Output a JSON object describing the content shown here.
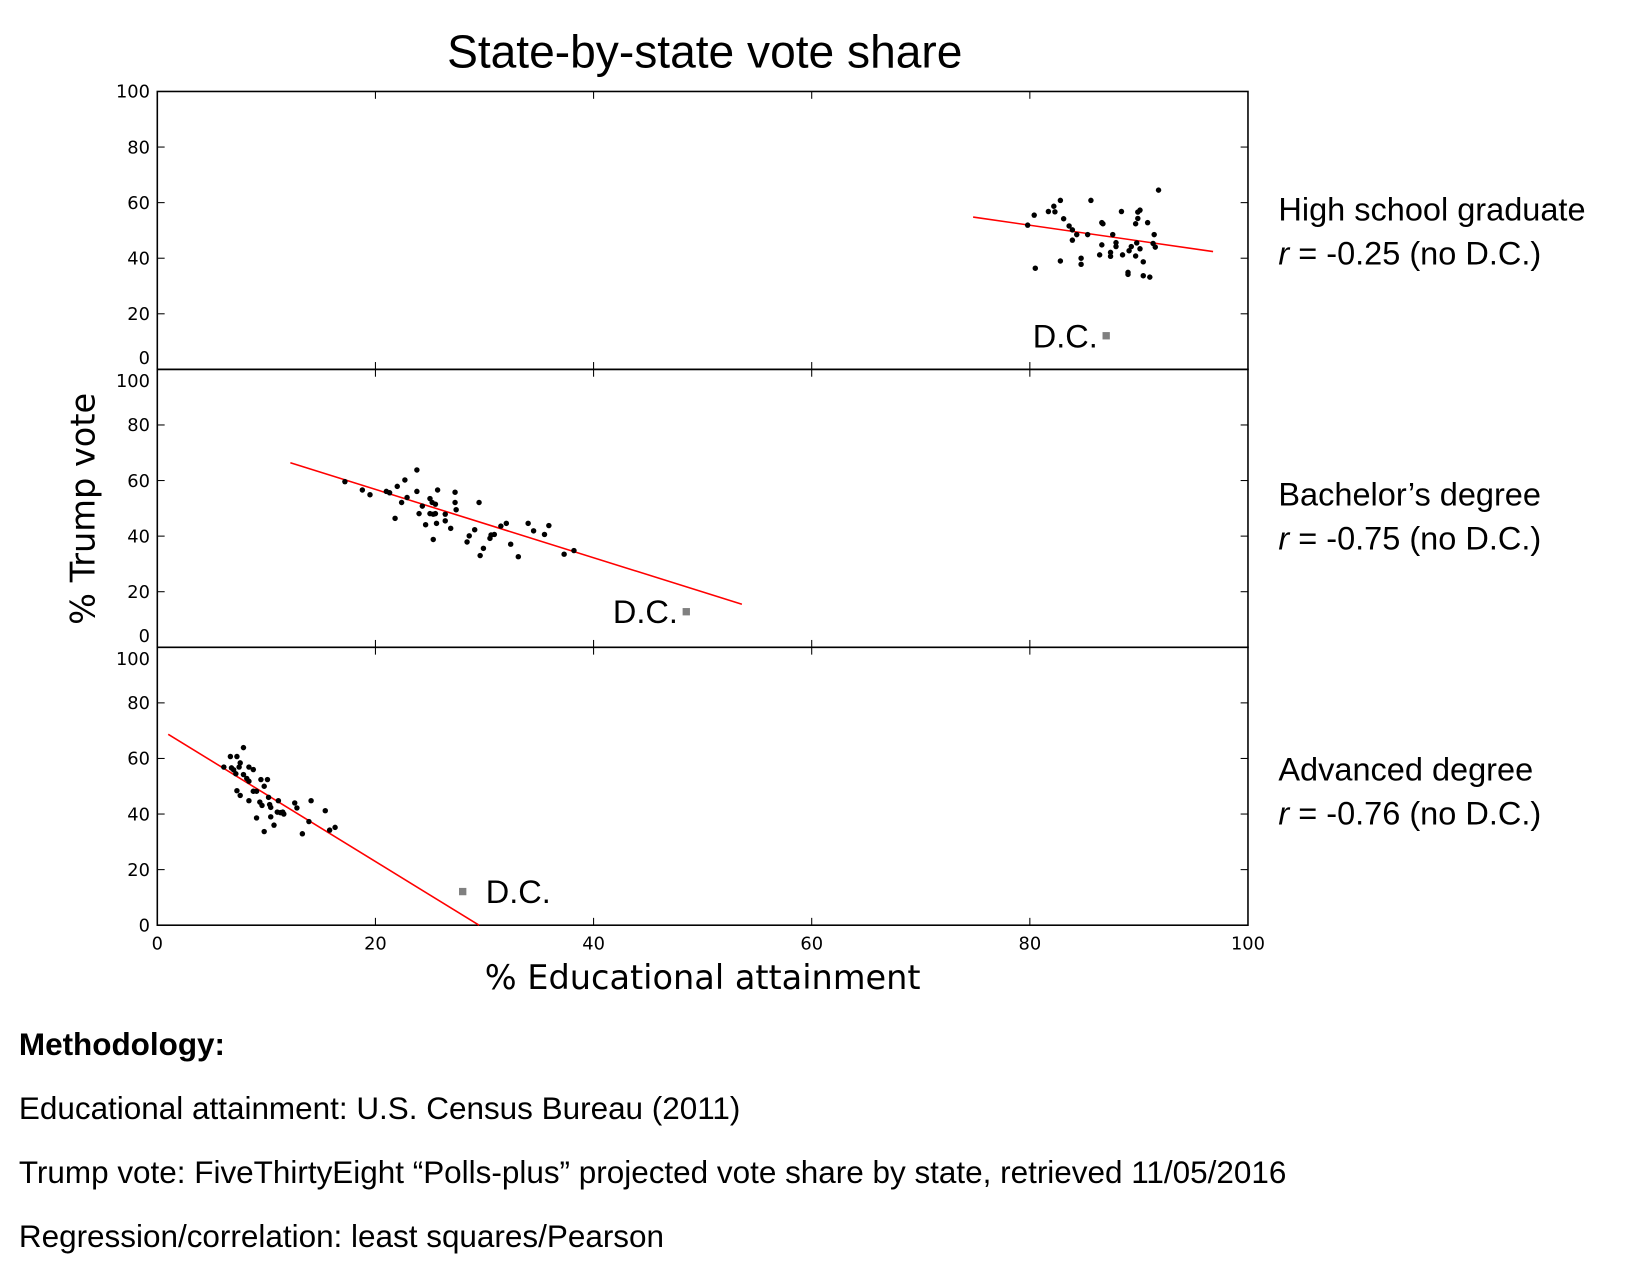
{
  "chart_data": {
    "type": "scatter",
    "title": "State-by-state vote share",
    "xlabel": "% Educational attainment",
    "ylabel": "% Trump vote",
    "xlim": [
      0,
      100
    ],
    "ylim": [
      0,
      100
    ],
    "xticks": [
      "0",
      "20",
      "40",
      "60",
      "80",
      "100"
    ],
    "yticks": [
      "0",
      "20",
      "40",
      "60",
      "80",
      "100"
    ],
    "grid": false,
    "colors": {
      "points": "#000000",
      "fit": "#ff0000",
      "dc": "#808080"
    },
    "panels": [
      {
        "name": "High school graduate",
        "r_label": "r",
        "r_text": " = -0.25 (no D.C.)",
        "dc_label": "D.C.",
        "dc_point": [
          87.0,
          12.1
        ],
        "fit_line": [
          [
            74.8,
            54.8
          ],
          [
            96.8,
            42.4
          ]
        ],
        "points": [
          [
            79.8,
            51.9
          ],
          [
            80.4,
            55.5
          ],
          [
            80.5,
            36.4
          ],
          [
            81.7,
            56.8
          ],
          [
            82.2,
            58.7
          ],
          [
            82.3,
            56.7
          ],
          [
            82.8,
            60.8
          ],
          [
            82.8,
            39.0
          ],
          [
            83.1,
            54.2
          ],
          [
            83.6,
            51.6
          ],
          [
            83.9,
            50.2
          ],
          [
            84.3,
            48.5
          ],
          [
            83.9,
            46.5
          ],
          [
            84.7,
            40.0
          ],
          [
            84.7,
            37.8
          ],
          [
            85.3,
            48.5
          ],
          [
            85.6,
            60.8
          ],
          [
            86.4,
            41.2
          ],
          [
            86.6,
            44.8
          ],
          [
            86.6,
            52.8
          ],
          [
            86.7,
            52.4
          ],
          [
            87.4,
            42.1
          ],
          [
            87.4,
            40.7
          ],
          [
            87.6,
            48.5
          ],
          [
            87.9,
            45.6
          ],
          [
            87.9,
            44.2
          ],
          [
            88.4,
            56.8
          ],
          [
            88.5,
            41.2
          ],
          [
            89.0,
            34.9
          ],
          [
            89.0,
            34.2
          ],
          [
            89.1,
            42.7
          ],
          [
            89.3,
            44.2
          ],
          [
            89.7,
            40.8
          ],
          [
            89.7,
            52.4
          ],
          [
            89.8,
            45.5
          ],
          [
            89.9,
            54.3
          ],
          [
            89.9,
            56.6
          ],
          [
            90.1,
            57.3
          ],
          [
            90.1,
            43.4
          ],
          [
            90.4,
            33.7
          ],
          [
            90.4,
            38.7
          ],
          [
            90.8,
            52.8
          ],
          [
            91.0,
            33.2
          ],
          [
            91.4,
            48.5
          ],
          [
            91.3,
            45.3
          ],
          [
            91.5,
            44.0
          ],
          [
            91.8,
            64.5
          ]
        ]
      },
      {
        "name": "Bachelor’s degree",
        "r_label": "r",
        "r_text": " = -0.75 (no D.C.)",
        "dc_label": "D.C.",
        "dc_point": [
          48.5,
          12.8
        ],
        "fit_line": [
          [
            12.2,
            66.4
          ],
          [
            53.6,
            15.5
          ]
        ],
        "points": [
          [
            17.2,
            59.6
          ],
          [
            18.8,
            56.6
          ],
          [
            19.5,
            54.9
          ],
          [
            21.0,
            56.1
          ],
          [
            21.3,
            55.6
          ],
          [
            22.0,
            57.9
          ],
          [
            21.8,
            46.4
          ],
          [
            22.4,
            52.1
          ],
          [
            22.7,
            60.2
          ],
          [
            22.9,
            53.9
          ],
          [
            23.8,
            63.8
          ],
          [
            23.8,
            56.1
          ],
          [
            24.0,
            48.1
          ],
          [
            24.3,
            50.8
          ],
          [
            24.6,
            44.1
          ],
          [
            25.0,
            53.5
          ],
          [
            25.2,
            52.1
          ],
          [
            25.5,
            51.5
          ],
          [
            25.0,
            48.1
          ],
          [
            25.3,
            47.9
          ],
          [
            25.5,
            48.1
          ],
          [
            25.3,
            38.8
          ],
          [
            25.6,
            44.6
          ],
          [
            25.7,
            56.6
          ],
          [
            26.4,
            45.5
          ],
          [
            26.4,
            47.9
          ],
          [
            26.9,
            42.8
          ],
          [
            27.3,
            55.8
          ],
          [
            27.3,
            52.1
          ],
          [
            27.4,
            49.5
          ],
          [
            28.4,
            37.9
          ],
          [
            28.6,
            40.1
          ],
          [
            29.1,
            42.3
          ],
          [
            29.5,
            52.1
          ],
          [
            29.6,
            33.0
          ],
          [
            29.9,
            35.6
          ],
          [
            30.5,
            39.2
          ],
          [
            30.6,
            40.4
          ],
          [
            30.9,
            40.6
          ],
          [
            31.5,
            43.6
          ],
          [
            32.0,
            44.6
          ],
          [
            32.4,
            37.1
          ],
          [
            33.1,
            32.6
          ],
          [
            34.0,
            44.6
          ],
          [
            34.5,
            41.9
          ],
          [
            35.5,
            40.6
          ],
          [
            35.9,
            43.8
          ],
          [
            37.3,
            33.5
          ],
          [
            38.2,
            34.8
          ]
        ]
      },
      {
        "name": "Advanced degree",
        "r_label": "r",
        "r_text": " = -0.76 (no D.C.)",
        "dc_label": "D.C.",
        "dc_point": [
          28.0,
          12.1
        ],
        "fit_line": [
          [
            1.0,
            68.7
          ],
          [
            29.5,
            0.0
          ]
        ],
        "points": [
          [
            6.1,
            56.9
          ],
          [
            6.7,
            60.7
          ],
          [
            6.8,
            56.6
          ],
          [
            7.3,
            60.7
          ],
          [
            7.9,
            63.9
          ],
          [
            7.6,
            58.4
          ],
          [
            7.5,
            56.9
          ],
          [
            7.2,
            54.5
          ],
          [
            7.0,
            55.9
          ],
          [
            7.9,
            54.2
          ],
          [
            8.4,
            56.9
          ],
          [
            8.8,
            56.0
          ],
          [
            8.2,
            52.8
          ],
          [
            8.4,
            51.8
          ],
          [
            7.3,
            48.4
          ],
          [
            7.6,
            46.7
          ],
          [
            8.4,
            44.8
          ],
          [
            8.8,
            48.2
          ],
          [
            9.1,
            48.2
          ],
          [
            9.5,
            52.4
          ],
          [
            10.1,
            52.4
          ],
          [
            9.8,
            50.0
          ],
          [
            10.2,
            46.0
          ],
          [
            9.4,
            44.3
          ],
          [
            9.6,
            43.1
          ],
          [
            10.3,
            43.4
          ],
          [
            10.4,
            42.4
          ],
          [
            11.1,
            44.8
          ],
          [
            11.0,
            40.7
          ],
          [
            11.3,
            40.5
          ],
          [
            11.6,
            40.0
          ],
          [
            11.5,
            40.7
          ],
          [
            9.1,
            38.6
          ],
          [
            10.4,
            39.0
          ],
          [
            10.7,
            36.0
          ],
          [
            9.8,
            33.7
          ],
          [
            12.6,
            44.0
          ],
          [
            12.8,
            42.2
          ],
          [
            14.1,
            44.8
          ],
          [
            13.9,
            37.3
          ],
          [
            13.3,
            32.9
          ],
          [
            15.4,
            41.2
          ],
          [
            15.8,
            34.2
          ],
          [
            16.3,
            35.2
          ]
        ]
      }
    ]
  },
  "methodology": {
    "heading": "Methodology:",
    "lines": [
      "Educational attainment: U.S. Census Bureau (2011)",
      "Trump vote: FiveThirtyEight “Polls-plus” projected vote share by state, retrieved 11/05/2016",
      "Regression/correlation: least squares/Pearson"
    ]
  }
}
